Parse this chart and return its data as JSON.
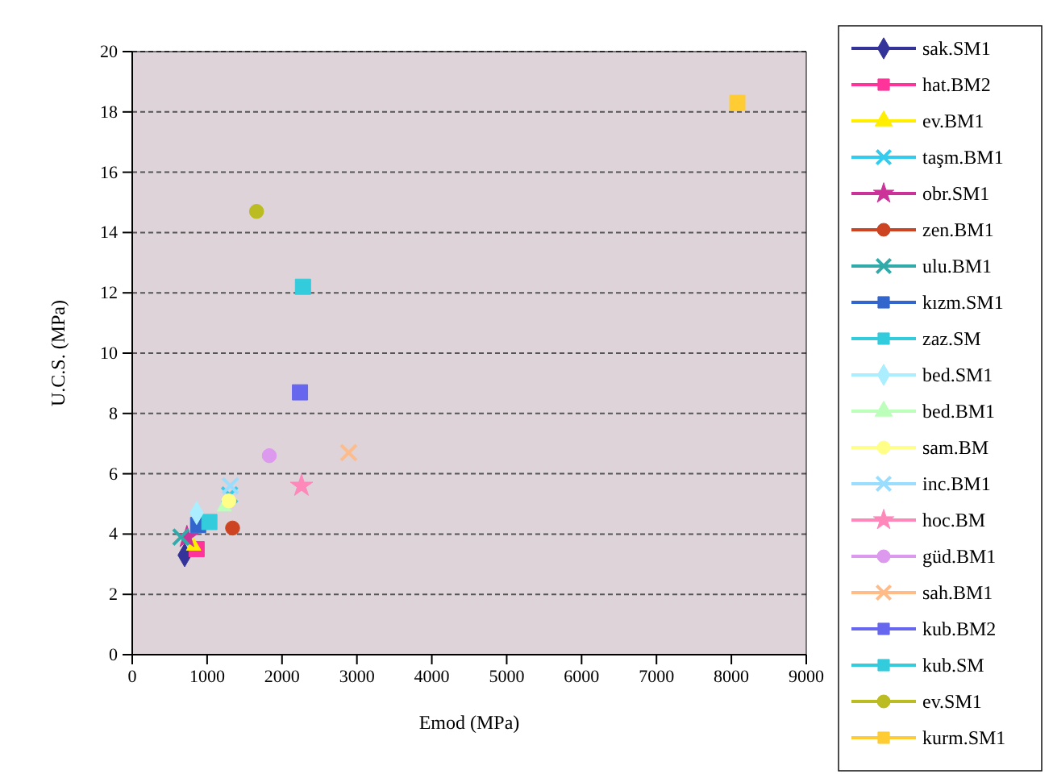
{
  "chart_data": {
    "type": "scatter",
    "xlabel": "Emod (MPa)",
    "ylabel": "U.C.S. (MPa)",
    "xlim": [
      0,
      9000
    ],
    "ylim": [
      0,
      20
    ],
    "xticks": [
      0,
      1000,
      2000,
      3000,
      4000,
      5000,
      6000,
      7000,
      8000,
      9000
    ],
    "yticks": [
      0,
      2,
      4,
      6,
      8,
      10,
      12,
      14,
      16,
      18,
      20
    ],
    "grid": "y",
    "legend": "right",
    "series": [
      {
        "name": "sak.SM1",
        "color": "#333399",
        "marker": "diamond",
        "x": [
          700
        ],
        "values": [
          3.3
        ]
      },
      {
        "name": "hat.BM2",
        "color": "#ff3399",
        "marker": "square",
        "x": [
          860
        ],
        "values": [
          3.5
        ]
      },
      {
        "name": "ev.BM1",
        "color": "#ffee00",
        "marker": "triangle",
        "x": [
          820
        ],
        "values": [
          3.6
        ]
      },
      {
        "name": "taşm.BM1",
        "color": "#33ccee",
        "marker": "cross",
        "x": [
          1300
        ],
        "values": [
          5.3
        ]
      },
      {
        "name": "obr.SM1",
        "color": "#cc3399",
        "marker": "star",
        "x": [
          730
        ],
        "values": [
          3.9
        ]
      },
      {
        "name": "zen.BM1",
        "color": "#cc4422",
        "marker": "circle",
        "x": [
          1340
        ],
        "values": [
          4.2
        ]
      },
      {
        "name": "ulu.BM1",
        "color": "#33aaaa",
        "marker": "cross",
        "x": [
          650
        ],
        "values": [
          3.9
        ]
      },
      {
        "name": "kızm.SM1",
        "color": "#3366cc",
        "marker": "square",
        "x": [
          880
        ],
        "values": [
          4.3
        ]
      },
      {
        "name": "zaz.SM",
        "color": "#33ccdd",
        "marker": "square",
        "x": [
          1030
        ],
        "values": [
          4.4
        ]
      },
      {
        "name": "bed.SM1",
        "color": "#aaeeff",
        "marker": "diamond",
        "x": [
          860
        ],
        "values": [
          4.7
        ]
      },
      {
        "name": "bed.BM1",
        "color": "#bbffbb",
        "marker": "triangle",
        "x": [
          1230
        ],
        "values": [
          4.9
        ]
      },
      {
        "name": "sam.BM",
        "color": "#ffff88",
        "marker": "circle",
        "x": [
          1290
        ],
        "values": [
          5.1
        ]
      },
      {
        "name": "inc.BM1",
        "color": "#99ddff",
        "marker": "cross",
        "x": [
          1310
        ],
        "values": [
          5.6
        ]
      },
      {
        "name": "hoc.BM",
        "color": "#ff88bb",
        "marker": "star",
        "x": [
          2260
        ],
        "values": [
          5.6
        ]
      },
      {
        "name": "güd.BM1",
        "color": "#dd99ee",
        "marker": "circle",
        "x": [
          1830
        ],
        "values": [
          6.6
        ]
      },
      {
        "name": "sah.BM1",
        "color": "#ffbb88",
        "marker": "cross",
        "x": [
          2890
        ],
        "values": [
          6.7
        ]
      },
      {
        "name": "kub.BM2",
        "color": "#6666ee",
        "marker": "square",
        "x": [
          2240
        ],
        "values": [
          8.7
        ]
      },
      {
        "name": "kub.SM",
        "color": "#33ccdd",
        "marker": "square",
        "x": [
          2280
        ],
        "values": [
          12.2
        ]
      },
      {
        "name": "ev.SM1",
        "color": "#bbbb22",
        "marker": "circle",
        "x": [
          1660
        ],
        "values": [
          14.7
        ]
      },
      {
        "name": "kurm.SM1",
        "color": "#ffcc33",
        "marker": "square",
        "x": [
          8080
        ],
        "values": [
          18.3
        ]
      }
    ]
  }
}
